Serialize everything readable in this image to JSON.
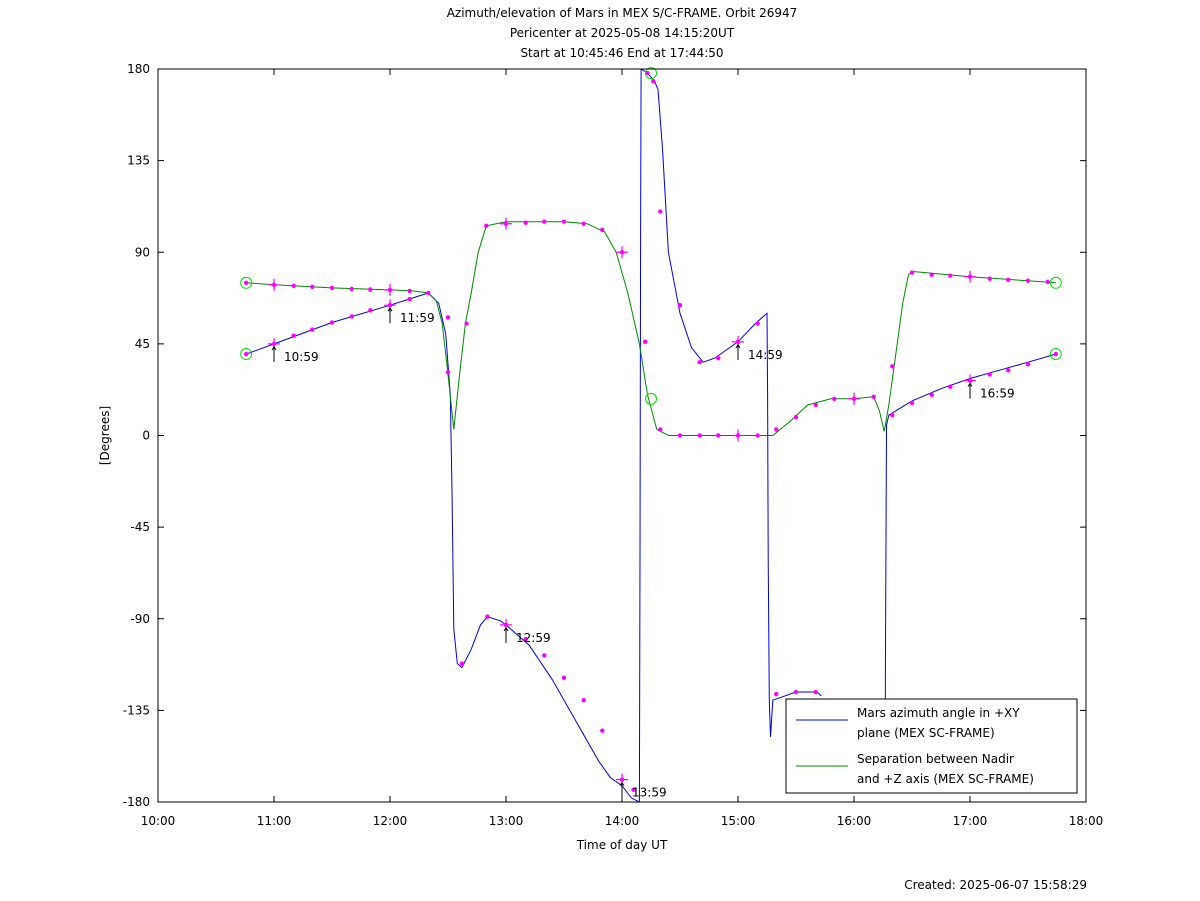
{
  "chart_data": {
    "type": "line",
    "title": [
      "Azimuth/elevation of Mars in MEX S/C-FRAME.  Orbit 26947",
      "Pericenter at 2025-05-08 14:15:20UT",
      "Start at 10:45:46 End at 17:44:50"
    ],
    "xlabel": "Time of day UT",
    "ylabel": "[Degrees]",
    "xlim": [
      10,
      18
    ],
    "ylim": [
      -180,
      180
    ],
    "x_tick_values": [
      10,
      11,
      12,
      13,
      14,
      15,
      16,
      17,
      18
    ],
    "x_tick_labels": [
      "10:00",
      "11:00",
      "12:00",
      "13:00",
      "14:00",
      "15:00",
      "16:00",
      "17:00",
      "18:00"
    ],
    "y_tick_values": [
      180,
      135,
      90,
      45,
      0,
      -45,
      -90,
      -135,
      -180
    ],
    "y_tick_labels": [
      "180",
      "135",
      "90",
      "45",
      "0",
      "-45",
      "-90",
      "-135",
      "-180"
    ],
    "legend_position": "bottom-right",
    "series": [
      {
        "name": "Mars azimuth angle in +XY plane (MEX SC-FRAME)",
        "legend_lines": [
          "Mars azimuth angle in +XY",
          "plane (MEX SC-FRAME)"
        ],
        "color": "#0000dd",
        "segments": [
          [
            [
              10.76,
              40
            ],
            [
              11.0,
              45
            ],
            [
              11.5,
              55.5
            ],
            [
              12.0,
              64
            ],
            [
              12.33,
              70
            ],
            [
              12.42,
              65
            ],
            [
              12.48,
              50
            ],
            [
              12.52,
              20
            ],
            [
              12.535,
              -30
            ],
            [
              12.55,
              -95
            ],
            [
              12.58,
              -112
            ],
            [
              12.62,
              -114
            ],
            [
              12.7,
              -105
            ],
            [
              12.78,
              -93
            ],
            [
              12.84,
              -89
            ],
            [
              12.95,
              -91
            ],
            [
              13.0,
              -93
            ],
            [
              13.2,
              -103
            ],
            [
              13.4,
              -120
            ],
            [
              13.6,
              -140
            ],
            [
              13.8,
              -160
            ],
            [
              13.9,
              -168
            ],
            [
              14.0,
              -172
            ],
            [
              14.08,
              -178
            ],
            [
              14.15,
              -180
            ]
          ],
          [
            [
              14.15,
              -180
            ],
            [
              14.155,
              -60
            ],
            [
              14.16,
              100
            ],
            [
              14.165,
              180
            ]
          ],
          [
            [
              14.165,
              180
            ],
            [
              14.22,
              178
            ],
            [
              14.28,
              174
            ],
            [
              14.31,
              170
            ],
            [
              14.35,
              140
            ],
            [
              14.4,
              90
            ],
            [
              14.5,
              60
            ],
            [
              14.6,
              43
            ],
            [
              14.7,
              36
            ],
            [
              14.8,
              38
            ],
            [
              15.0,
              46
            ],
            [
              15.15,
              55
            ],
            [
              15.25,
              60
            ],
            [
              15.255,
              20
            ],
            [
              15.26,
              -60
            ],
            [
              15.27,
              -130
            ],
            [
              15.28,
              -148
            ],
            [
              15.3,
              -130
            ],
            [
              15.5,
              -126
            ],
            [
              15.68,
              -126
            ],
            [
              15.72,
              -128
            ]
          ],
          [
            [
              16.27,
              -130
            ],
            [
              16.275,
              -60
            ],
            [
              16.28,
              5
            ],
            [
              16.3,
              10
            ],
            [
              16.5,
              17
            ],
            [
              16.75,
              23
            ],
            [
              17.0,
              28
            ],
            [
              17.25,
              32
            ],
            [
              17.5,
              36
            ],
            [
              17.74,
              40
            ]
          ]
        ]
      },
      {
        "name": "Separation between Nadir and +Z axis (MEX SC-FRAME)",
        "legend_lines": [
          "Separation between Nadir",
          "and +Z axis (MEX SC-FRAME)"
        ],
        "color": "#008800",
        "segments": [
          [
            [
              10.76,
              75
            ],
            [
              11.0,
              74
            ],
            [
              11.5,
              72.5
            ],
            [
              12.0,
              71.5
            ],
            [
              12.2,
              71
            ],
            [
              12.33,
              70
            ],
            [
              12.4,
              66
            ],
            [
              12.45,
              55
            ],
            [
              12.5,
              30
            ],
            [
              12.55,
              3
            ],
            [
              12.6,
              30
            ],
            [
              12.65,
              55
            ],
            [
              12.7,
              70
            ],
            [
              12.76,
              90
            ],
            [
              12.83,
              103
            ],
            [
              13.0,
              105
            ],
            [
              13.5,
              105
            ],
            [
              13.7,
              104
            ],
            [
              13.85,
              100
            ],
            [
              13.95,
              90
            ],
            [
              14.05,
              70
            ],
            [
              14.15,
              45
            ],
            [
              14.22,
              20
            ],
            [
              14.3,
              3
            ],
            [
              14.4,
              0
            ],
            [
              14.6,
              0
            ],
            [
              15.0,
              0
            ],
            [
              15.3,
              0
            ],
            [
              15.45,
              7
            ],
            [
              15.6,
              15
            ],
            [
              15.8,
              18
            ],
            [
              16.0,
              18
            ],
            [
              16.17,
              19
            ],
            [
              16.22,
              12
            ],
            [
              16.26,
              2
            ],
            [
              16.3,
              15
            ],
            [
              16.36,
              40
            ],
            [
              16.42,
              65
            ],
            [
              16.47,
              79
            ],
            [
              16.52,
              80.5
            ],
            [
              17.0,
              78
            ],
            [
              17.5,
              76
            ],
            [
              17.74,
              75
            ]
          ]
        ]
      }
    ],
    "markers": [
      [
        10.76,
        40
      ],
      [
        11.0,
        45
      ],
      [
        11.17,
        49
      ],
      [
        11.33,
        52
      ],
      [
        11.5,
        55.5
      ],
      [
        11.67,
        58.5
      ],
      [
        11.83,
        61.5
      ],
      [
        12.0,
        64
      ],
      [
        12.17,
        67
      ],
      [
        12.33,
        70
      ],
      [
        12.5,
        31
      ],
      [
        12.66,
        55
      ],
      [
        12.62,
        -112
      ],
      [
        12.84,
        -89
      ],
      [
        13.0,
        -93
      ],
      [
        13.17,
        -100
      ],
      [
        13.33,
        -108
      ],
      [
        13.5,
        -119
      ],
      [
        13.67,
        -130
      ],
      [
        13.83,
        -145
      ],
      [
        14.0,
        -169
      ],
      [
        14.1,
        -174
      ],
      [
        14.22,
        178
      ],
      [
        14.27,
        174
      ],
      [
        14.33,
        110
      ],
      [
        14.5,
        64
      ],
      [
        14.67,
        36
      ],
      [
        14.83,
        38
      ],
      [
        15.0,
        46
      ],
      [
        15.17,
        55
      ],
      [
        15.33,
        -127
      ],
      [
        15.5,
        -126
      ],
      [
        15.67,
        -126
      ],
      [
        16.33,
        10
      ],
      [
        16.5,
        16
      ],
      [
        16.67,
        20
      ],
      [
        16.83,
        24
      ],
      [
        17.0,
        27
      ],
      [
        17.17,
        30
      ],
      [
        17.33,
        32
      ],
      [
        17.5,
        35
      ],
      [
        17.74,
        40
      ],
      [
        10.76,
        75
      ],
      [
        11.0,
        74
      ],
      [
        11.17,
        73.5
      ],
      [
        11.33,
        73
      ],
      [
        11.5,
        72.5
      ],
      [
        11.67,
        72
      ],
      [
        11.83,
        71.7
      ],
      [
        12.0,
        71.5
      ],
      [
        12.17,
        71
      ],
      [
        12.5,
        58
      ],
      [
        12.83,
        103
      ],
      [
        13.0,
        104
      ],
      [
        13.17,
        104.5
      ],
      [
        13.33,
        105
      ],
      [
        13.5,
        105
      ],
      [
        13.67,
        104
      ],
      [
        13.83,
        101
      ],
      [
        14.0,
        90
      ],
      [
        14.2,
        46
      ],
      [
        14.33,
        3
      ],
      [
        14.5,
        0
      ],
      [
        14.67,
        0
      ],
      [
        14.83,
        0
      ],
      [
        15.0,
        0
      ],
      [
        15.17,
        0
      ],
      [
        15.33,
        3
      ],
      [
        15.5,
        9
      ],
      [
        15.67,
        15
      ],
      [
        15.83,
        18
      ],
      [
        16.0,
        18
      ],
      [
        16.17,
        19
      ],
      [
        16.33,
        34
      ],
      [
        16.5,
        80
      ],
      [
        16.67,
        79
      ],
      [
        16.83,
        78.5
      ],
      [
        17.0,
        78
      ],
      [
        17.17,
        77
      ],
      [
        17.33,
        76.5
      ],
      [
        17.5,
        76
      ],
      [
        17.67,
        75.5
      ]
    ],
    "cross_markers": [
      [
        11.0,
        45
      ],
      [
        12.0,
        64
      ],
      [
        13.0,
        -93
      ],
      [
        14.0,
        -169
      ],
      [
        15.0,
        46
      ],
      [
        17.0,
        27
      ],
      [
        11.0,
        74
      ],
      [
        12.0,
        71.5
      ],
      [
        13.0,
        104
      ],
      [
        14.0,
        90
      ],
      [
        15.0,
        0
      ],
      [
        16.0,
        18
      ],
      [
        17.0,
        78
      ]
    ],
    "circle_markers": [
      [
        10.76,
        40
      ],
      [
        10.76,
        75
      ],
      [
        14.25,
        178
      ],
      [
        14.25,
        18
      ],
      [
        17.74,
        40
      ],
      [
        17.74,
        75
      ]
    ],
    "annotations": [
      {
        "label": "10:59",
        "x": 11.0,
        "y": 45
      },
      {
        "label": "11:59",
        "x": 12.0,
        "y": 64
      },
      {
        "label": "12:59",
        "x": 13.0,
        "y": -93
      },
      {
        "label": "13:59",
        "x": 14.0,
        "y": -169
      },
      {
        "label": "14:59",
        "x": 15.0,
        "y": 46
      },
      {
        "label": "16:59",
        "x": 17.0,
        "y": 27
      }
    ],
    "marker_color": "#ff00ff",
    "circle_color": "#00dd00"
  },
  "footer": {
    "created": "Created: 2025-06-07 15:58:29"
  }
}
